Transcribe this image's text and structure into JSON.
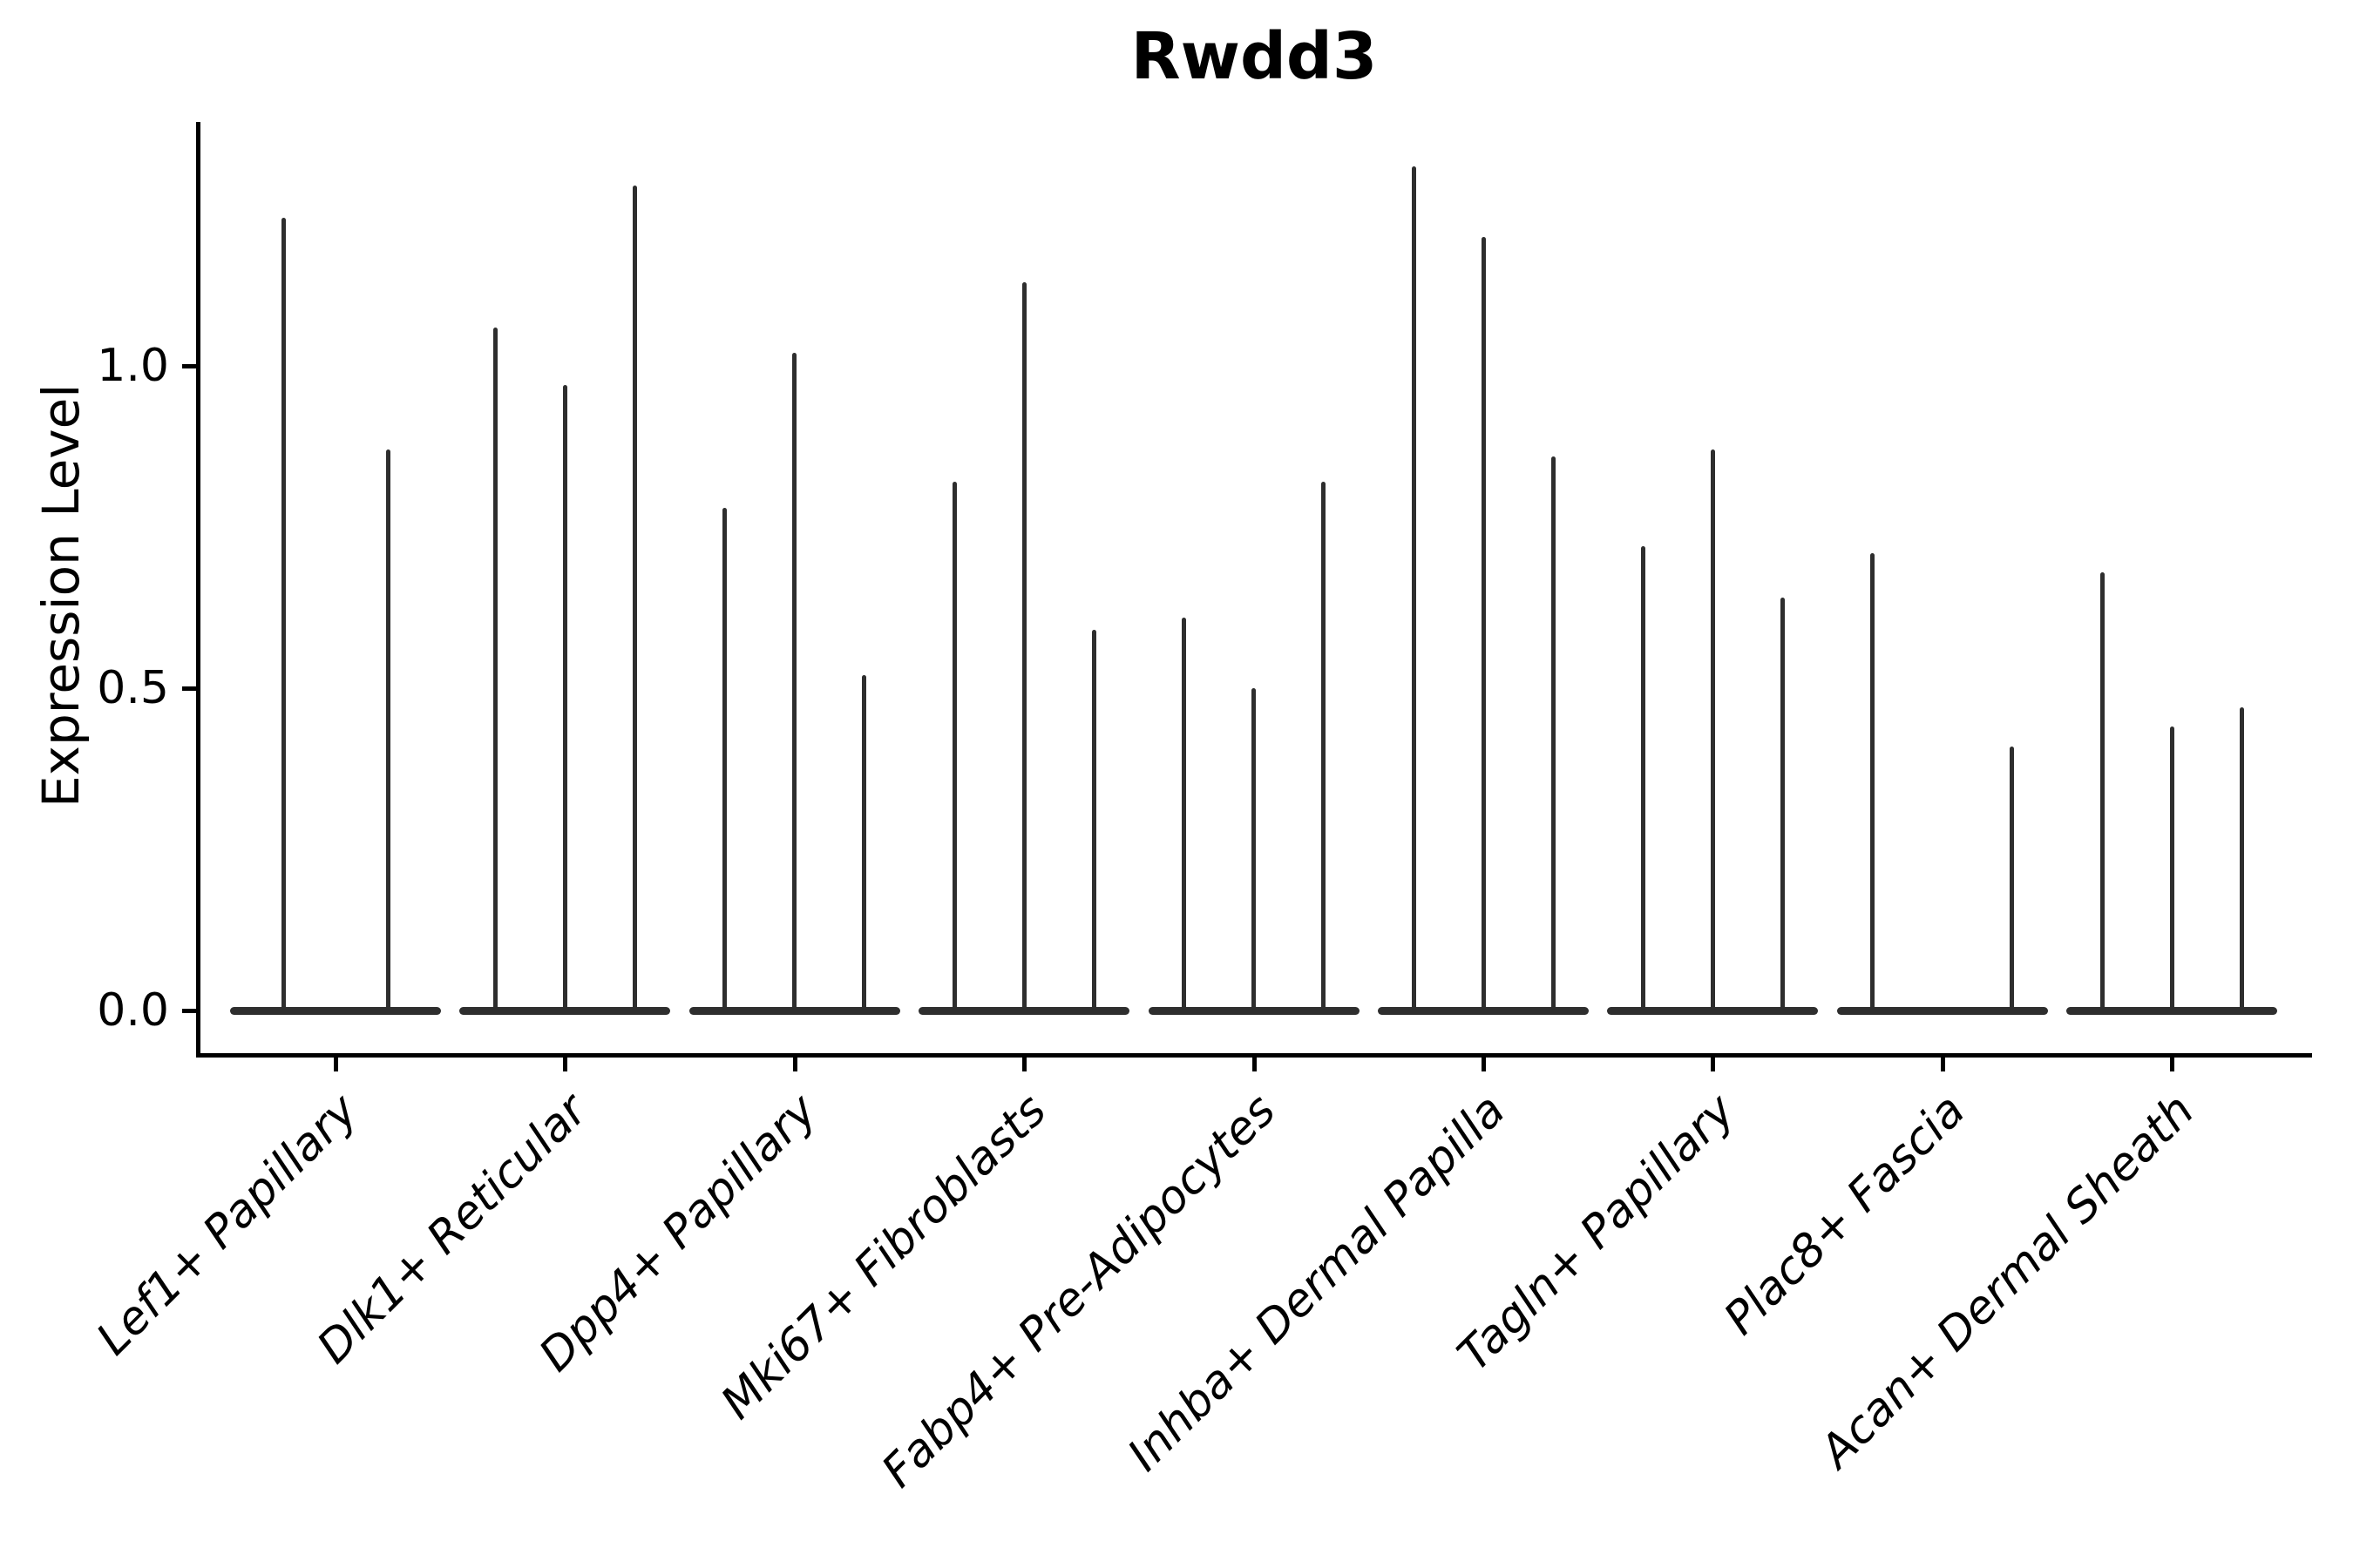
{
  "title": "Rwdd3",
  "ylabel": "Expression Level",
  "colors": {
    "background": "#ffffff",
    "axis": "#000000",
    "text": "#000000",
    "violin": "#2e2e2e"
  },
  "chart_data": {
    "type": "violin",
    "title": "Rwdd3",
    "xlabel": "",
    "ylabel": "Expression Level",
    "ylim": [
      0,
      1.38
    ],
    "yticks": [
      0.0,
      0.5,
      1.0
    ],
    "ytick_labels": [
      "0.0",
      "0.5",
      "1.0"
    ],
    "grid": false,
    "legend": "none",
    "description": "Single-cell expression violin plot; each category shows 2-3 very thin violins (split sub-groups) whose bodies are flat at 0 with a thin spike up to the maximum expression value.",
    "categories": [
      "Lef1+ Papillary",
      "Dlk1+ Reticular",
      "Dpp4+ Papillary",
      "Mki67+ Fibroblasts",
      "Fabp4+ Pre-Adipocytes",
      "Inhba+ Dermal Papilla",
      "Tagln+ Papillary",
      "Plac8+ Fascia",
      "Acan+ Dermal Sheath"
    ],
    "groups": [
      {
        "category": "Lef1+ Papillary",
        "violins": [
          {
            "offset": -60,
            "max": 1.23
          },
          {
            "offset": 60,
            "max": 0.87
          }
        ]
      },
      {
        "category": "Dlk1+ Reticular",
        "violins": [
          {
            "offset": -80,
            "max": 1.06
          },
          {
            "offset": 0,
            "max": 0.97
          },
          {
            "offset": 80,
            "max": 1.28
          }
        ]
      },
      {
        "category": "Dpp4+ Papillary",
        "violins": [
          {
            "offset": -80,
            "max": 0.78
          },
          {
            "offset": 0,
            "max": 1.02
          },
          {
            "offset": 80,
            "max": 0.52
          }
        ]
      },
      {
        "category": "Mki67+ Fibroblasts",
        "violins": [
          {
            "offset": -80,
            "max": 0.82
          },
          {
            "offset": 0,
            "max": 1.13
          },
          {
            "offset": 80,
            "max": 0.59
          }
        ]
      },
      {
        "category": "Fabp4+ Pre-Adipocytes",
        "violins": [
          {
            "offset": -80,
            "max": 0.61
          },
          {
            "offset": 0,
            "max": 0.5
          },
          {
            "offset": 80,
            "max": 0.82
          }
        ]
      },
      {
        "category": "Inhba+ Dermal Papilla",
        "violins": [
          {
            "offset": -80,
            "max": 1.31
          },
          {
            "offset": 0,
            "max": 1.2
          },
          {
            "offset": 80,
            "max": 0.86
          }
        ]
      },
      {
        "category": "Tagln+ Papillary",
        "violins": [
          {
            "offset": -80,
            "max": 0.72
          },
          {
            "offset": 0,
            "max": 0.87
          },
          {
            "offset": 80,
            "max": 0.64
          }
        ]
      },
      {
        "category": "Plac8+ Fascia",
        "violins": [
          {
            "offset": -80,
            "max": 0.71
          },
          {
            "offset": 80,
            "max": 0.41
          }
        ]
      },
      {
        "category": "Acan+ Dermal Sheath",
        "violins": [
          {
            "offset": -80,
            "max": 0.68
          },
          {
            "offset": 0,
            "max": 0.44
          },
          {
            "offset": 80,
            "max": 0.47
          }
        ]
      }
    ]
  }
}
